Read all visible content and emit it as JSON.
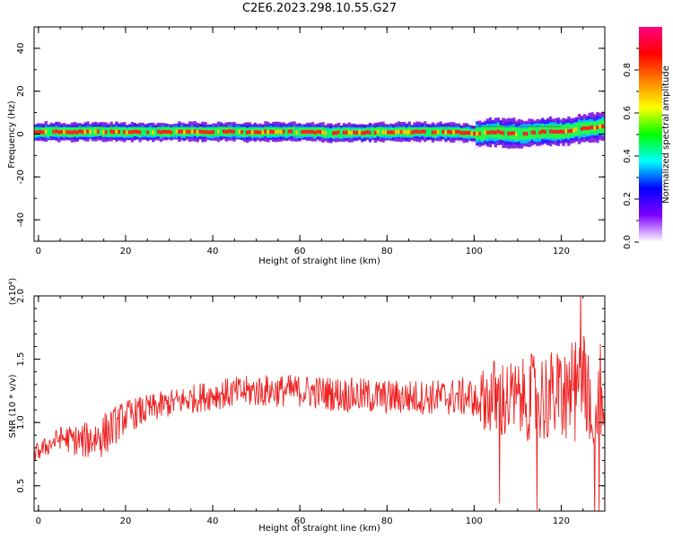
{
  "figure": {
    "title": "C2E6.2023.298.10.55.G27"
  },
  "chart_data": [
    {
      "type": "heatmap",
      "xlabel": "Height of straight line (km)",
      "ylabel": "Frequency (Hz)",
      "xlim": [
        -1,
        130
      ],
      "ylim": [
        -50,
        50
      ],
      "xticks": [
        0,
        20,
        40,
        60,
        80,
        100,
        120
      ],
      "yticks": [
        -40,
        -20,
        0,
        20,
        40
      ],
      "grid": false,
      "ridge": {
        "x": [
          0,
          10,
          20,
          30,
          40,
          50,
          60,
          70,
          80,
          90,
          95,
          100,
          105,
          110,
          115,
          120,
          125,
          130
        ],
        "center_y": [
          1,
          1,
          1,
          1,
          1,
          1,
          1,
          0.5,
          1,
          1,
          1,
          0,
          1,
          0,
          1,
          1,
          2.5,
          3.5
        ]
      },
      "colorbar": {
        "label": "Normalized spectral amplitude",
        "range": [
          0,
          1
        ],
        "ticks": [
          0.0,
          0.2,
          0.4,
          0.6,
          0.8
        ],
        "colormap": [
          "#ffffff",
          "#8000ff",
          "#0000ff",
          "#00ffff",
          "#00ff00",
          "#ffff00",
          "#ff8000",
          "#ff0000",
          "#ff0080"
        ]
      }
    },
    {
      "type": "line",
      "xlabel": "Height of straight line (km)",
      "ylabel": "SNR (10 * v/v)",
      "scale_label": "(x10⁴)",
      "xlim": [
        -1,
        130
      ],
      "ylim": [
        0.3,
        2.0
      ],
      "xticks": [
        0,
        20,
        40,
        60,
        80,
        100,
        120
      ],
      "yticks": [
        0.5,
        1.0,
        1.5,
        2.0
      ],
      "grid": false,
      "color": "#ee2222",
      "series": [
        {
          "x": [
            -1,
            5,
            10,
            15,
            20,
            30,
            40,
            50,
            60,
            70,
            80,
            90,
            100,
            105,
            110,
            115,
            120,
            125,
            130
          ],
          "mean": [
            0.75,
            0.88,
            0.85,
            0.9,
            1.05,
            1.15,
            1.22,
            1.25,
            1.25,
            1.22,
            1.2,
            1.2,
            1.2,
            1.18,
            1.18,
            1.2,
            1.22,
            1.25,
            1.25
          ],
          "amp": [
            0.07,
            0.09,
            0.14,
            0.18,
            0.13,
            0.11,
            0.12,
            0.13,
            0.13,
            0.14,
            0.14,
            0.14,
            0.16,
            0.35,
            0.3,
            0.38,
            0.35,
            0.45,
            0.4
          ]
        }
      ]
    }
  ]
}
